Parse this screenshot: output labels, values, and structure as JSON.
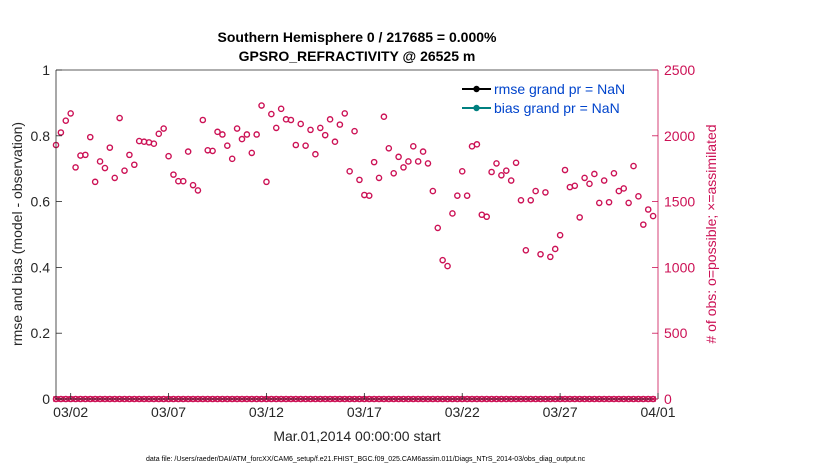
{
  "chart_data": {
    "type": "scatter",
    "title": "Southern Hemisphere 0 / 217685 = 0.000%",
    "subtitle": "GPSRO_REFRACTIVITY @ 26525 m",
    "xlabel": "Mar.01,2014 00:00:00 start",
    "ylabel": "rmse and bias (model - observation)",
    "y2label": "# of obs: o=possible; ×=assimilated",
    "footnote": "data file: /Users/raeder/DAI/ATM_forcXX/CAM6_setup/f.e21.FHIST_BGC.f09_025.CAM6assim.011/Diags_NTrS_2014-03/obs_diag_output.nc",
    "x_ticks": [
      "03/02",
      "03/07",
      "03/12",
      "03/17",
      "03/22",
      "03/27",
      "04/01"
    ],
    "x_tick_days": [
      1,
      6,
      11,
      16,
      21,
      26,
      31
    ],
    "xlim": [
      0.25,
      31
    ],
    "ylim": [
      0,
      1
    ],
    "y_ticks": [
      "0",
      "0.2",
      "0.4",
      "0.6",
      "0.8",
      "1"
    ],
    "y2lim": [
      0,
      2500
    ],
    "y2_ticks": [
      "0",
      "500",
      "1000",
      "1500",
      "2000",
      "2500"
    ],
    "grid": false,
    "legend_position": "top-right",
    "legend": [
      {
        "label": "rmse grand pr = NaN",
        "color": "#000000"
      },
      {
        "label": "bias grand pr = NaN",
        "color": "#008080"
      }
    ],
    "colors": {
      "obs": "#cc1155",
      "rmse": "#000000",
      "bias": "#008080",
      "legend_text": "#0044cc"
    },
    "series": [
      {
        "name": "possible",
        "marker": "o",
        "axis": "right",
        "x": [
          0.25,
          0.5,
          0.75,
          1.0,
          1.25,
          1.5,
          1.75,
          2.0,
          2.25,
          2.5,
          2.75,
          3.0,
          3.25,
          3.5,
          3.75,
          4.0,
          4.25,
          4.5,
          4.75,
          5.0,
          5.25,
          5.5,
          5.75,
          6.0,
          6.25,
          6.5,
          6.75,
          7.0,
          7.25,
          7.5,
          7.75,
          8.0,
          8.25,
          8.5,
          8.75,
          9.0,
          9.25,
          9.5,
          9.75,
          10.0,
          10.25,
          10.5,
          10.75,
          11.0,
          11.25,
          11.5,
          11.75,
          12.0,
          12.25,
          12.5,
          12.75,
          13.0,
          13.25,
          13.5,
          13.75,
          14.0,
          14.25,
          14.5,
          14.75,
          15.0,
          15.25,
          15.5,
          15.75,
          16.0,
          16.25,
          16.5,
          16.75,
          17.0,
          17.25,
          17.5,
          17.75,
          18.0,
          18.25,
          18.5,
          18.75,
          19.0,
          19.25,
          19.5,
          19.75,
          20.0,
          20.25,
          20.5,
          20.75,
          21.0,
          21.25,
          21.5,
          21.75,
          22.0,
          22.25,
          22.5,
          22.75,
          23.0,
          23.25,
          23.5,
          23.75,
          24.0,
          24.25,
          24.5,
          24.75,
          25.0,
          25.25,
          25.5,
          25.75,
          26.0,
          26.25,
          26.5,
          26.75,
          27.0,
          27.25,
          27.5,
          27.75,
          28.0,
          28.25,
          28.5,
          28.75,
          29.0,
          29.25,
          29.5,
          29.75,
          30.0,
          30.25,
          30.5,
          30.75
        ],
        "values": [
          1930,
          2025,
          2115,
          2170,
          1760,
          1850,
          1855,
          1990,
          1650,
          1805,
          1755,
          1910,
          1680,
          2135,
          1735,
          1855,
          1780,
          1960,
          1955,
          1950,
          1940,
          2015,
          2055,
          1845,
          1705,
          1655,
          1655,
          1880,
          1625,
          1585,
          2120,
          1890,
          1885,
          2030,
          2010,
          1925,
          1825,
          2055,
          1975,
          2010,
          1870,
          2010,
          2230,
          1650,
          2165,
          2060,
          2205,
          2125,
          2120,
          1930,
          2090,
          1925,
          2045,
          1860,
          2060,
          2005,
          2125,
          1955,
          2085,
          2170,
          1730,
          2035,
          1665,
          1550,
          1545,
          1800,
          1680,
          2145,
          1905,
          1715,
          1840,
          1760,
          1805,
          1920,
          1805,
          1880,
          1790,
          1580,
          1300,
          1055,
          1010,
          1410,
          1545,
          1730,
          1545,
          1920,
          1935,
          1400,
          1385,
          1725,
          1790,
          1700,
          1735,
          1660,
          1795,
          1510,
          1130,
          1510,
          1580,
          1100,
          1570,
          1080,
          1140,
          1245,
          1740,
          1610,
          1620,
          1380,
          1680,
          1635,
          1710,
          1490,
          1660,
          1495,
          1715,
          1580,
          1600,
          1490,
          1770,
          1540,
          1325,
          1440,
          1390
        ]
      },
      {
        "name": "assimilated",
        "marker": "x",
        "axis": "right",
        "constant_value": 0
      }
    ]
  }
}
